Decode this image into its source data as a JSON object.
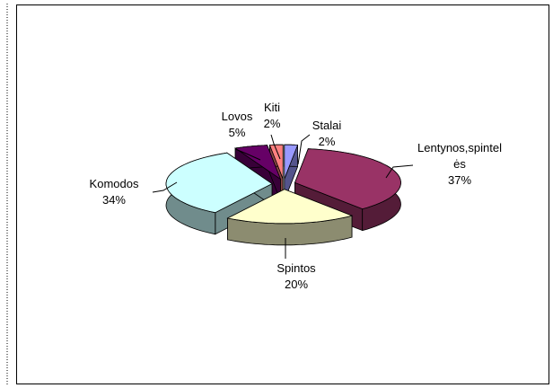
{
  "chart_data": {
    "type": "pie",
    "categories": [
      "Stalai",
      "Lentynos,spintelės",
      "Spintos",
      "Komodos",
      "Lovos",
      "Kiti"
    ],
    "values": [
      2,
      37,
      20,
      34,
      5,
      2
    ],
    "value_labels": [
      "2%",
      "37%",
      "20%",
      "34%",
      "5%",
      "2%"
    ],
    "colors": [
      "#9999ff",
      "#993366",
      "#ffffcc",
      "#ccffff",
      "#660066",
      "#ff8080"
    ]
  }
}
